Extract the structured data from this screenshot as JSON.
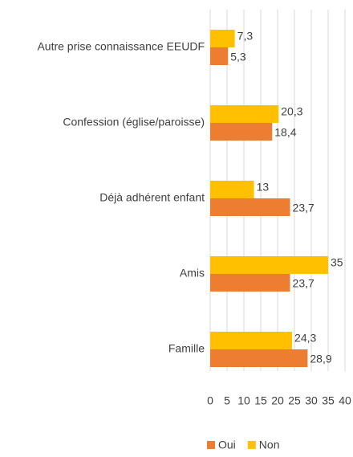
{
  "chart_data": {
    "type": "hbar",
    "categories": [
      "Autre prise connaissance EEUDF",
      "Confession (église/paroisse)",
      "Déjà adhérent enfant",
      "Amis",
      "Famille"
    ],
    "series": [
      {
        "name": "Oui",
        "color": "#ED7D31",
        "values": [
          5.3,
          18.4,
          23.7,
          23.7,
          28.9
        ],
        "value_labels": [
          "5,3",
          "18,4",
          "23,7",
          "23,7",
          "28,9"
        ]
      },
      {
        "name": "Non",
        "color": "#FFC000",
        "values": [
          7.3,
          20.3,
          13,
          35,
          24.3
        ],
        "value_labels": [
          "7,3",
          "20,3",
          "13",
          "35",
          "24,3"
        ]
      }
    ],
    "xlim": [
      0,
      40
    ],
    "xticks": [
      0,
      5,
      10,
      15,
      20,
      25,
      30,
      35,
      40
    ],
    "grid": true,
    "legend": "bottom"
  }
}
